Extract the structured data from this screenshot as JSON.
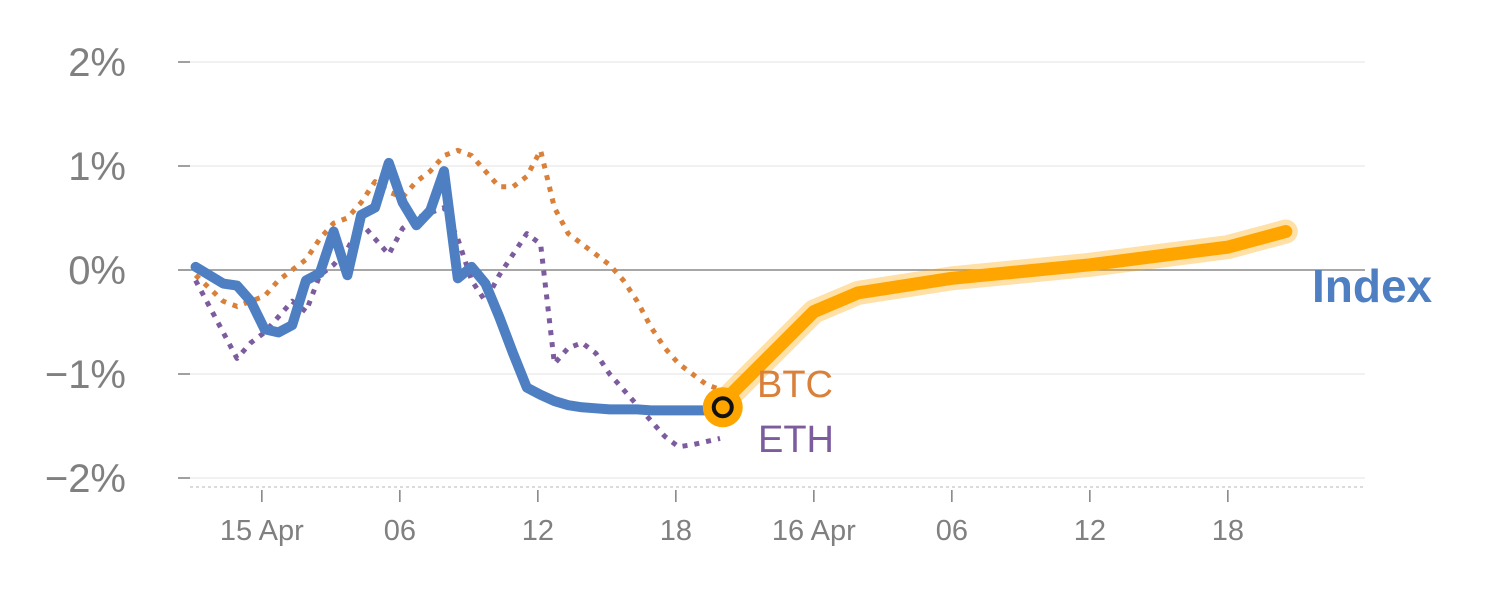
{
  "chart_data": {
    "type": "line",
    "yticks": [
      {
        "value": 2,
        "label": "2%"
      },
      {
        "value": 1,
        "label": "1%"
      },
      {
        "value": 0,
        "label": "0%"
      },
      {
        "value": -1,
        "label": "−1%"
      },
      {
        "value": -2,
        "label": "−2%"
      }
    ],
    "ylim": [
      -2.1,
      2.1
    ],
    "xlim": [
      0,
      8.6
    ],
    "xticks": [
      {
        "x": 0.68,
        "label": "15 Apr"
      },
      {
        "x": 1.68,
        "label": "06"
      },
      {
        "x": 2.68,
        "label": "12"
      },
      {
        "x": 3.68,
        "label": "18"
      },
      {
        "x": 4.68,
        "label": "16 Apr"
      },
      {
        "x": 5.68,
        "label": "06"
      },
      {
        "x": 6.68,
        "label": "12"
      },
      {
        "x": 7.68,
        "label": "18"
      }
    ],
    "grid": true,
    "series": [
      {
        "name": "BTC",
        "color": "#d9803a",
        "style": "dotted",
        "x": [
          0.2,
          0.4,
          0.5,
          0.6,
          0.7,
          0.8,
          0.9,
          1.0,
          1.1,
          1.2,
          1.3,
          1.4,
          1.5,
          1.6,
          1.7,
          1.8,
          1.9,
          2.0,
          2.1,
          2.2,
          2.3,
          2.4,
          2.5,
          2.6,
          2.7,
          2.8,
          2.9,
          3.0,
          3.1,
          3.2,
          3.3,
          3.4,
          3.5,
          3.6,
          3.7,
          3.8,
          3.9,
          4.0
        ],
        "values": [
          -0.05,
          -0.3,
          -0.35,
          -0.3,
          -0.25,
          -0.1,
          0.0,
          0.1,
          0.3,
          0.45,
          0.5,
          0.65,
          0.85,
          0.75,
          0.7,
          0.85,
          0.95,
          1.1,
          1.15,
          1.1,
          0.95,
          0.8,
          0.8,
          0.9,
          1.15,
          0.6,
          0.35,
          0.25,
          0.15,
          0.05,
          -0.1,
          -0.3,
          -0.55,
          -0.75,
          -0.9,
          -1.0,
          -1.1,
          -1.15
        ]
      },
      {
        "name": "ETH",
        "color": "#7c5c9e",
        "style": "dotted",
        "x": [
          0.2,
          0.4,
          0.5,
          0.6,
          0.7,
          0.8,
          0.9,
          1.0,
          1.1,
          1.2,
          1.3,
          1.4,
          1.5,
          1.6,
          1.7,
          1.8,
          1.9,
          2.0,
          2.1,
          2.2,
          2.3,
          2.4,
          2.5,
          2.6,
          2.7,
          2.8,
          2.9,
          3.0,
          3.1,
          3.2,
          3.3,
          3.4,
          3.5,
          3.6,
          3.7,
          3.8,
          3.9,
          4.0
        ],
        "values": [
          -0.1,
          -0.6,
          -0.85,
          -0.7,
          -0.6,
          -0.45,
          -0.3,
          -0.4,
          -0.05,
          0.05,
          0.2,
          0.45,
          0.3,
          0.15,
          0.4,
          0.5,
          0.55,
          0.6,
          0.3,
          -0.1,
          -0.3,
          -0.05,
          0.15,
          0.35,
          0.25,
          -0.9,
          -0.75,
          -0.7,
          -0.8,
          -1.0,
          -1.15,
          -1.3,
          -1.45,
          -1.6,
          -1.7,
          -1.68,
          -1.65,
          -1.62
        ]
      },
      {
        "name": "Index",
        "color": "#4e7fc2",
        "style": "solid",
        "x": [
          0.2,
          0.4,
          0.5,
          0.6,
          0.7,
          0.8,
          0.9,
          1.0,
          1.1,
          1.2,
          1.3,
          1.4,
          1.5,
          1.6,
          1.7,
          1.8,
          1.9,
          2.0,
          2.1,
          2.2,
          2.3,
          2.4,
          2.5,
          2.6,
          2.7,
          2.8,
          2.9,
          3.0,
          3.1,
          3.2,
          3.3,
          3.4,
          3.5,
          3.6,
          3.7,
          3.8,
          3.9,
          4.0
        ],
        "values": [
          0.03,
          -0.13,
          -0.15,
          -0.3,
          -0.57,
          -0.6,
          -0.53,
          -0.1,
          -0.03,
          0.37,
          -0.05,
          0.53,
          0.6,
          1.03,
          0.65,
          0.43,
          0.57,
          0.95,
          -0.08,
          0.03,
          -0.13,
          -0.45,
          -0.8,
          -1.13,
          -1.2,
          -1.26,
          -1.3,
          -1.32,
          -1.33,
          -1.34,
          -1.34,
          -1.34,
          -1.35,
          -1.35,
          -1.35,
          -1.35,
          -1.35,
          -1.35
        ]
      }
    ],
    "projection": {
      "color": "#ffa500",
      "x": [
        4.0,
        4.68,
        5.0,
        5.68,
        6.68,
        7.68,
        8.1
      ],
      "values": [
        -1.3,
        -0.4,
        -0.22,
        -0.08,
        0.05,
        0.22,
        0.37
      ]
    },
    "marker": {
      "x": 4.02,
      "value": -1.32,
      "color": "#ffa500"
    },
    "labels": {
      "btc": "BTC",
      "eth": "ETH",
      "index": "Index"
    }
  }
}
